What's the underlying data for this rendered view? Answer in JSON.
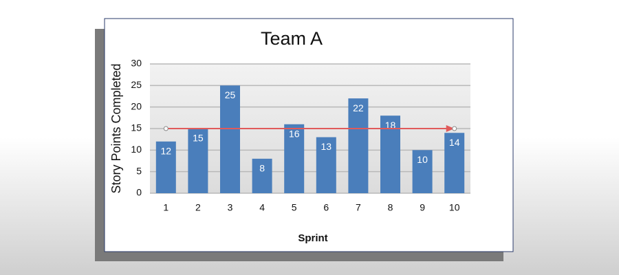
{
  "chart_data": {
    "type": "bar",
    "title": "Team A",
    "x_label": "Sprint",
    "y_label": "Story Points Completed",
    "categories": [
      "1",
      "2",
      "3",
      "4",
      "5",
      "6",
      "7",
      "8",
      "9",
      "10"
    ],
    "values": [
      12,
      15,
      25,
      8,
      16,
      13,
      22,
      18,
      10,
      14
    ],
    "color": "#4a7ebb",
    "ylim": [
      0,
      30
    ],
    "yticks": [
      0,
      5,
      10,
      15,
      20,
      25,
      30
    ],
    "grid": true,
    "reference_line": {
      "value": 15,
      "color": "#e05a5a"
    }
  }
}
